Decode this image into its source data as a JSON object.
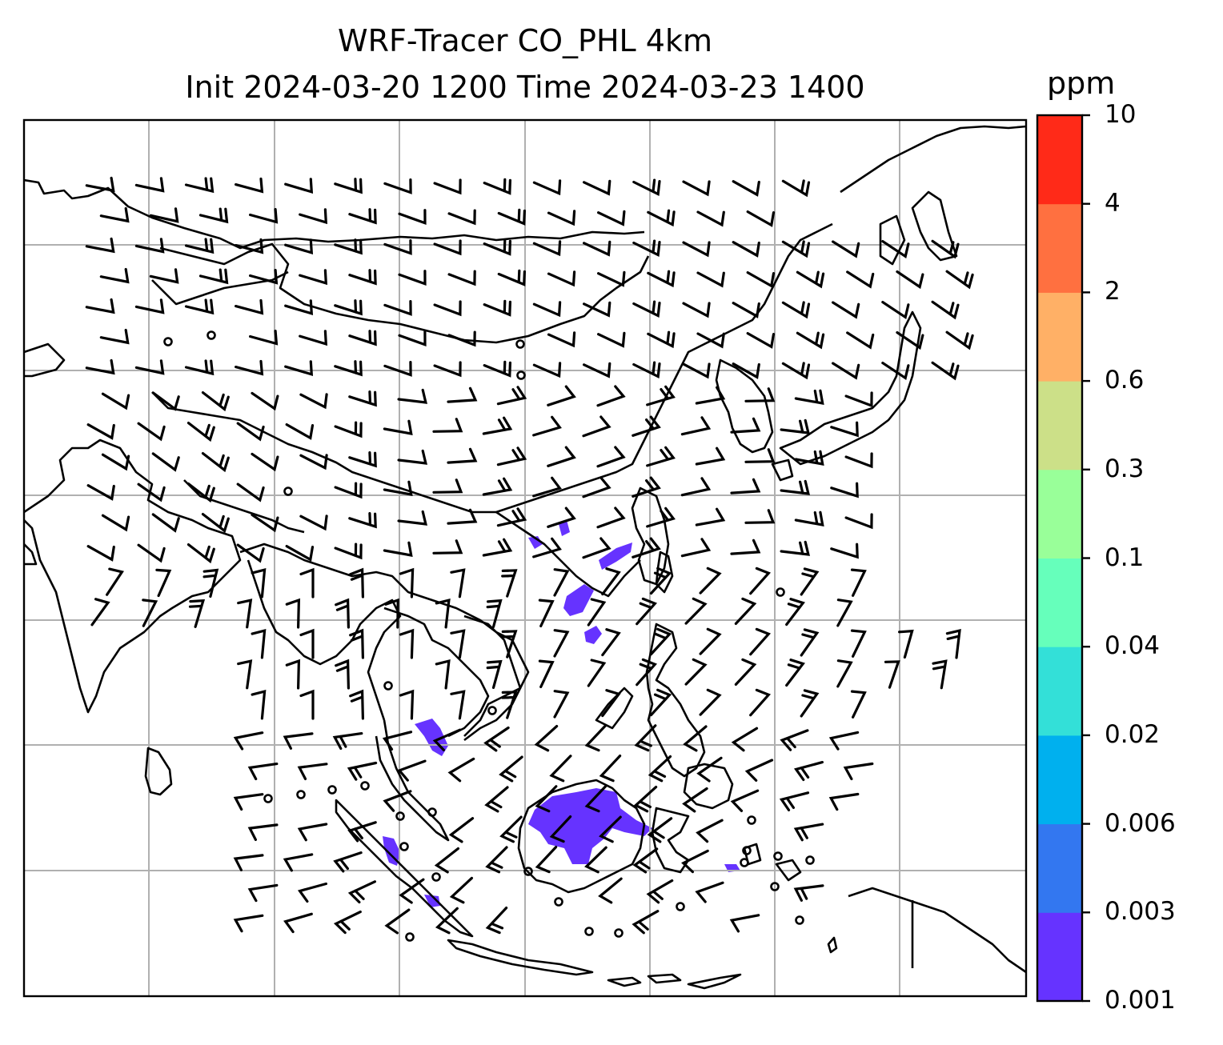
{
  "title": {
    "line1": "WRF-Tracer CO_PHL 4km",
    "line2": "Init 2024-03-20 1200 Time 2024-03-23 1400"
  },
  "colorbar": {
    "unit": "ppm",
    "levels": [
      "0.001",
      "0.003",
      "0.006",
      "0.02",
      "0.04",
      "0.1",
      "0.3",
      "0.6",
      "2",
      "4",
      "10"
    ],
    "colors": [
      "#6633ff",
      "#3377f0",
      "#00b0ee",
      "#33e0d8",
      "#66ffbb",
      "#99ff99",
      "#cce088",
      "#ffb066",
      "#ff7040",
      "#ff2a18"
    ]
  },
  "map": {
    "gridlines": true,
    "coastline_color": "#000000",
    "gridline_color": "#b0b0b0",
    "tracer_color": "#6633ff",
    "wind_symbol": "barbs"
  }
}
